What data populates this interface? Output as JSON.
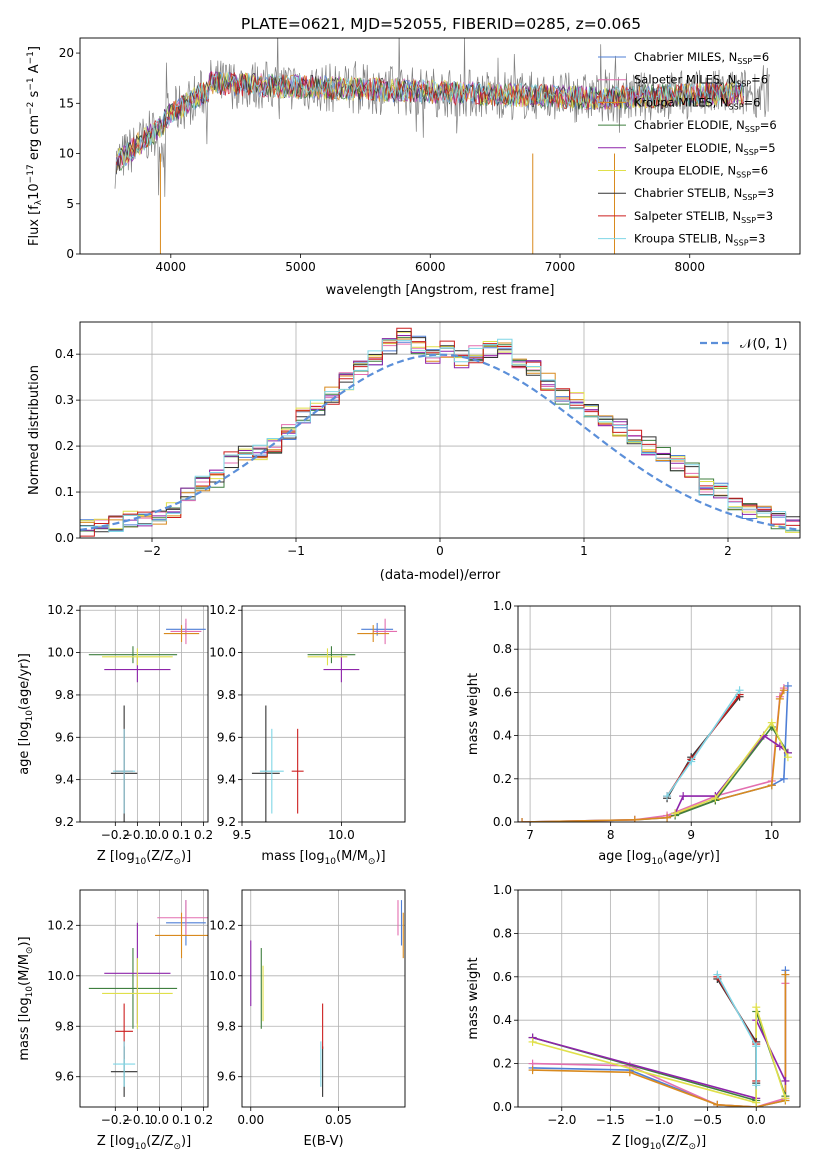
{
  "title": "PLATE=0621, MJD=52055, FIBERID=0285, z=0.065",
  "colors": {
    "Chabrier MILES": "#4f7fd6",
    "Salpeter MILES": "#e36fb0",
    "Kroupa MILES": "#d98a1e",
    "Chabrier ELODIE": "#3f7f3f",
    "Salpeter ELODIE": "#8e24aa",
    "Kroupa ELODIE": "#e0e04a",
    "Chabrier STELIB": "#333333",
    "Salpeter STELIB": "#cc1f1f",
    "Kroupa STELIB": "#7fd6e6",
    "data": "#808080",
    "normal": "#5b8fd9",
    "grid": "#b0b0b0"
  },
  "chart_data": [
    {
      "id": "spectrum",
      "type": "line",
      "title": "PLATE=0621, MJD=52055, FIBERID=0285, z=0.065",
      "xlabel": "wavelength [Angstrom, rest frame]",
      "ylabel_parts": [
        "Flux [f",
        "λ",
        "10",
        "−17",
        " erg cm",
        "−2",
        " s",
        "−1",
        " A",
        "−1",
        "]"
      ],
      "xlim": [
        3300,
        8850
      ],
      "ylim": [
        0,
        21.5
      ],
      "xticks": [
        4000,
        5000,
        6000,
        7000,
        8000
      ],
      "xtick_labels": [
        "4000",
        "5000",
        "6000",
        "7000",
        "8000"
      ],
      "yticks": [
        0,
        5,
        10,
        15,
        20
      ],
      "ytick_labels": [
        "0",
        "5",
        "10",
        "15",
        "20"
      ],
      "data_range": [
        3570,
        8620
      ],
      "legend": [
        {
          "base": "Chabrier MILES, N",
          "sub": "SSP",
          "tail": "=6"
        },
        {
          "base": "Salpeter MILES, N",
          "sub": "SSP",
          "tail": "=6"
        },
        {
          "base": "Kroupa MILES, N",
          "sub": "SSP",
          "tail": "=6"
        },
        {
          "base": "Chabrier ELODIE, N",
          "sub": "SSP",
          "tail": "=6"
        },
        {
          "base": "Salpeter ELODIE, N",
          "sub": "SSP",
          "tail": "=5"
        },
        {
          "base": "Kroupa ELODIE, N",
          "sub": "SSP",
          "tail": "=6"
        },
        {
          "base": "Chabrier STELIB, N",
          "sub": "SSP",
          "tail": "=3"
        },
        {
          "base": "Salpeter STELIB, N",
          "sub": "SSP",
          "tail": "=3"
        },
        {
          "base": "Kroupa STELIB, N",
          "sub": "SSP",
          "tail": "=3"
        }
      ]
    },
    {
      "id": "histogram",
      "type": "histogram",
      "xlabel": "(data-model)/error",
      "ylabel": "Normed distribution",
      "xlim": [
        -2.5,
        2.5
      ],
      "ylim": [
        0,
        0.47
      ],
      "xticks": [
        -2,
        -1,
        0,
        1,
        2
      ],
      "xtick_labels": [
        "−2",
        "−1",
        "0",
        "1",
        "2"
      ],
      "yticks": [
        0,
        0.1,
        0.2,
        0.3,
        0.4
      ],
      "ytick_labels": [
        "0.0",
        "0.1",
        "0.2",
        "0.3",
        "0.4"
      ],
      "bin_width": 0.1,
      "reference_counts": [
        0.02,
        0.03,
        0.03,
        0.04,
        0.04,
        0.05,
        0.06,
        0.09,
        0.12,
        0.13,
        0.17,
        0.18,
        0.19,
        0.2,
        0.23,
        0.27,
        0.28,
        0.31,
        0.34,
        0.37,
        0.39,
        0.42,
        0.44,
        0.42,
        0.4,
        0.41,
        0.39,
        0.4,
        0.41,
        0.42,
        0.38,
        0.37,
        0.34,
        0.31,
        0.3,
        0.28,
        0.25,
        0.24,
        0.22,
        0.2,
        0.18,
        0.16,
        0.15,
        0.11,
        0.1,
        0.08,
        0.06,
        0.05,
        0.04,
        0.03
      ],
      "legend_label": "𝒩(0, 1)"
    },
    {
      "id": "age-vs-z",
      "type": "errorbar",
      "xlabel_parts": [
        "Z [log",
        "10",
        "(Z/Z",
        "⊙",
        ")]"
      ],
      "ylabel_parts": [
        "age  [log",
        "10",
        "(age/yr)]"
      ],
      "xlim": [
        -0.36,
        0.22
      ],
      "ylim": [
        9.2,
        10.22
      ],
      "xticks": [
        -0.2,
        -0.1,
        0,
        0.1,
        0.2
      ],
      "xtick_labels": [
        "−0.2",
        "−0.1",
        "0.0",
        "0.1",
        "0.2"
      ],
      "yticks": [
        9.2,
        9.4,
        9.6,
        9.8,
        10.0,
        10.2
      ],
      "ytick_labels": [
        "9.2",
        "9.4",
        "9.6",
        "9.8",
        "10.0",
        "10.2"
      ],
      "points": [
        {
          "model": "Chabrier MILES",
          "x": 0.12,
          "xerr": 0.09,
          "y": 10.11,
          "yerr": 0.03
        },
        {
          "model": "Salpeter MILES",
          "x": 0.12,
          "xerr": 0.07,
          "y": 10.1,
          "yerr": 0.06
        },
        {
          "model": "Kroupa MILES",
          "x": 0.1,
          "xerr": 0.08,
          "y": 10.09,
          "yerr": 0.04
        },
        {
          "model": "Chabrier ELODIE",
          "x": -0.12,
          "xerr": 0.2,
          "y": 9.99,
          "yerr": 0.04
        },
        {
          "model": "Salpeter ELODIE",
          "x": -0.1,
          "xerr": 0.15,
          "y": 9.92,
          "yerr": 0.06
        },
        {
          "model": "Kroupa ELODIE",
          "x": -0.1,
          "xerr": 0.16,
          "y": 9.98,
          "yerr": 0.04
        },
        {
          "model": "Chabrier STELIB",
          "x": -0.16,
          "xerr": 0.06,
          "y": 9.43,
          "yerr": 0.32
        },
        {
          "model": "Salpeter STELIB",
          "x": -0.16,
          "xerr": 0.04,
          "y": 9.44,
          "yerr": 0.2
        },
        {
          "model": "Kroupa STELIB",
          "x": -0.16,
          "xerr": 0.05,
          "y": 9.44,
          "yerr": 0.2
        }
      ]
    },
    {
      "id": "age-vs-mass",
      "type": "errorbar",
      "xlabel_parts": [
        "mass [log",
        "10",
        "(M/M",
        "⊙",
        ")]"
      ],
      "ylabel_parts": [],
      "xlim": [
        9.5,
        10.32
      ],
      "ylim": [
        9.2,
        10.22
      ],
      "xticks": [
        9.5,
        10.0
      ],
      "xtick_labels": [
        "9.5",
        "10.0"
      ],
      "yticks": [
        9.2,
        9.4,
        9.6,
        9.8,
        10.0,
        10.2
      ],
      "ytick_labels": [
        "9.2",
        "9.4",
        "9.6",
        "9.8",
        "10.0",
        "10.2"
      ],
      "points": [
        {
          "model": "Chabrier MILES",
          "x": 10.18,
          "xerr": 0.08,
          "y": 10.11,
          "yerr": 0.03
        },
        {
          "model": "Salpeter MILES",
          "x": 10.22,
          "xerr": 0.06,
          "y": 10.1,
          "yerr": 0.06
        },
        {
          "model": "Kroupa MILES",
          "x": 10.16,
          "xerr": 0.08,
          "y": 10.09,
          "yerr": 0.04
        },
        {
          "model": "Chabrier ELODIE",
          "x": 9.95,
          "xerr": 0.12,
          "y": 9.99,
          "yerr": 0.04
        },
        {
          "model": "Salpeter ELODIE",
          "x": 10.0,
          "xerr": 0.09,
          "y": 9.92,
          "yerr": 0.06
        },
        {
          "model": "Kroupa ELODIE",
          "x": 9.93,
          "xerr": 0.1,
          "y": 9.98,
          "yerr": 0.04
        },
        {
          "model": "Chabrier STELIB",
          "x": 9.62,
          "xerr": 0.07,
          "y": 9.43,
          "yerr": 0.32
        },
        {
          "model": "Salpeter STELIB",
          "x": 9.78,
          "xerr": 0.03,
          "y": 9.44,
          "yerr": 0.2
        },
        {
          "model": "Kroupa STELIB",
          "x": 9.65,
          "xerr": 0.06,
          "y": 9.44,
          "yerr": 0.2
        }
      ]
    },
    {
      "id": "mass-weight-vs-age",
      "type": "line",
      "xlabel_parts": [
        "age  [log",
        "10",
        "(age/yr)]"
      ],
      "ylabel": "mass weight",
      "xlim": [
        6.85,
        10.35
      ],
      "ylim": [
        0,
        1.0
      ],
      "xticks": [
        7,
        8,
        9,
        10
      ],
      "xtick_labels": [
        "7",
        "8",
        "9",
        "10"
      ],
      "yticks": [
        0,
        0.2,
        0.4,
        0.6,
        0.8,
        1.0
      ],
      "ytick_labels": [
        "0.0",
        "0.2",
        "0.4",
        "0.6",
        "0.8",
        "1.0"
      ],
      "series": [
        {
          "model": "Chabrier MILES",
          "x": [
            6.9,
            8.3,
            8.7,
            9.3,
            10.0,
            10.15,
            10.2
          ],
          "y": [
            0.0,
            0.01,
            0.02,
            0.1,
            0.17,
            0.2,
            0.63
          ]
        },
        {
          "model": "Salpeter MILES",
          "x": [
            6.9,
            8.3,
            8.7,
            9.3,
            10.0,
            10.1,
            10.15
          ],
          "y": [
            0.0,
            0.01,
            0.03,
            0.12,
            0.19,
            0.58,
            0.62
          ]
        },
        {
          "model": "Kroupa MILES",
          "x": [
            6.9,
            8.3,
            8.7,
            9.3,
            10.0,
            10.1,
            10.15
          ],
          "y": [
            0.0,
            0.01,
            0.02,
            0.1,
            0.17,
            0.57,
            0.61
          ]
        },
        {
          "model": "Chabrier ELODIE",
          "x": [
            8.8,
            9.3,
            10.0,
            10.2
          ],
          "y": [
            0.03,
            0.1,
            0.44,
            0.32
          ]
        },
        {
          "model": "Salpeter ELODIE",
          "x": [
            8.8,
            8.9,
            9.3,
            9.9,
            10.1,
            10.2
          ],
          "y": [
            0.04,
            0.12,
            0.12,
            0.4,
            0.35,
            0.32
          ]
        },
        {
          "model": "Kroupa ELODIE",
          "x": [
            8.8,
            9.3,
            10.0,
            10.2
          ],
          "y": [
            0.04,
            0.11,
            0.46,
            0.3
          ]
        },
        {
          "model": "Chabrier STELIB",
          "x": [
            8.7,
            9.0,
            9.6
          ],
          "y": [
            0.11,
            0.3,
            0.58
          ]
        },
        {
          "model": "Salpeter STELIB",
          "x": [
            8.7,
            9.0,
            9.6
          ],
          "y": [
            0.12,
            0.29,
            0.59
          ]
        },
        {
          "model": "Kroupa STELIB",
          "x": [
            8.7,
            9.0,
            9.6
          ],
          "y": [
            0.12,
            0.28,
            0.61
          ]
        }
      ]
    },
    {
      "id": "mass-vs-z",
      "type": "errorbar",
      "xlabel_parts": [
        "Z [log",
        "10",
        "(Z/Z",
        "⊙",
        ")]"
      ],
      "ylabel_parts": [
        "mass [log",
        "10",
        "(M/M",
        "⊙",
        ")]"
      ],
      "xlim": [
        -0.36,
        0.22
      ],
      "ylim": [
        9.48,
        10.34
      ],
      "xticks": [
        -0.2,
        -0.1,
        0,
        0.1,
        0.2
      ],
      "xtick_labels": [
        "−0.2",
        "−0.1",
        "0.0",
        "0.1",
        "0.2"
      ],
      "yticks": [
        9.6,
        9.8,
        10.0,
        10.2
      ],
      "ytick_labels": [
        "9.6",
        "9.8",
        "10.0",
        "10.2"
      ],
      "points": [
        {
          "model": "Chabrier MILES",
          "x": 0.12,
          "xerr": 0.09,
          "y": 10.21,
          "yerr": 0.09
        },
        {
          "model": "Salpeter MILES",
          "x": 0.12,
          "xerr": 0.13,
          "y": 10.23,
          "yerr": 0.07
        },
        {
          "model": "Kroupa MILES",
          "x": 0.1,
          "xerr": 0.12,
          "y": 10.16,
          "yerr": 0.09
        },
        {
          "model": "Chabrier ELODIE",
          "x": -0.12,
          "xerr": 0.2,
          "y": 9.95,
          "yerr": 0.16
        },
        {
          "model": "Salpeter ELODIE",
          "x": -0.1,
          "xerr": 0.15,
          "y": 10.01,
          "yerr": 0.2
        },
        {
          "model": "Kroupa ELODIE",
          "x": -0.1,
          "xerr": 0.16,
          "y": 9.93,
          "yerr": 0.14
        },
        {
          "model": "Chabrier STELIB",
          "x": -0.16,
          "xerr": 0.06,
          "y": 9.62,
          "yerr": 0.1
        },
        {
          "model": "Salpeter STELIB",
          "x": -0.16,
          "xerr": 0.04,
          "y": 9.78,
          "yerr": 0.11
        },
        {
          "model": "Kroupa STELIB",
          "x": -0.16,
          "xerr": 0.05,
          "y": 9.65,
          "yerr": 0.09
        }
      ]
    },
    {
      "id": "mass-vs-ebv",
      "type": "errorbar",
      "xlabel": "E(B-V)",
      "xlim": [
        -0.005,
        0.088
      ],
      "ylim": [
        9.48,
        10.34
      ],
      "xticks": [
        0.0,
        0.05
      ],
      "xtick_labels": [
        "0.00",
        "0.05"
      ],
      "yticks": [
        9.6,
        9.8,
        10.0,
        10.2
      ],
      "ytick_labels": [
        "9.6",
        "9.8",
        "10.0",
        "10.2"
      ],
      "points": [
        {
          "model": "Chabrier MILES",
          "x": 0.086,
          "xerr": 0,
          "y": 10.21,
          "yerr": 0.09
        },
        {
          "model": "Salpeter MILES",
          "x": 0.084,
          "xerr": 0,
          "y": 10.23,
          "yerr": 0.07
        },
        {
          "model": "Kroupa MILES",
          "x": 0.087,
          "xerr": 0,
          "y": 10.16,
          "yerr": 0.09
        },
        {
          "model": "Chabrier ELODIE",
          "x": 0.006,
          "xerr": 0,
          "y": 9.95,
          "yerr": 0.16
        },
        {
          "model": "Salpeter ELODIE",
          "x": 0.0,
          "xerr": 0,
          "y": 10.01,
          "yerr": 0.13
        },
        {
          "model": "Kroupa ELODIE",
          "x": 0.007,
          "xerr": 0,
          "y": 9.93,
          "yerr": 0.11
        },
        {
          "model": "Chabrier STELIB",
          "x": 0.041,
          "xerr": 0,
          "y": 9.62,
          "yerr": 0.1
        },
        {
          "model": "Salpeter STELIB",
          "x": 0.041,
          "xerr": 0,
          "y": 9.8,
          "yerr": 0.09
        },
        {
          "model": "Kroupa STELIB",
          "x": 0.04,
          "xerr": 0,
          "y": 9.65,
          "yerr": 0.09
        }
      ]
    },
    {
      "id": "mass-weight-vs-z",
      "type": "line",
      "xlabel_parts": [
        "Z [log",
        "10",
        "(Z/Z",
        "⊙",
        ")]"
      ],
      "ylabel": "mass weight",
      "xlim": [
        -2.45,
        0.45
      ],
      "ylim": [
        0,
        1.0
      ],
      "xticks": [
        -2.0,
        -1.5,
        -1.0,
        -0.5,
        0.0
      ],
      "xtick_labels": [
        "−2.0",
        "−1.5",
        "−1.0",
        "−0.5",
        "0.0"
      ],
      "yticks": [
        0,
        0.2,
        0.4,
        0.6,
        0.8,
        1.0
      ],
      "ytick_labels": [
        "0.0",
        "0.2",
        "0.4",
        "0.6",
        "0.8",
        "1.0"
      ],
      "series": [
        {
          "model": "Chabrier MILES",
          "x": [
            -2.3,
            -1.3,
            -0.4,
            0.0,
            0.3,
            0.3
          ],
          "y": [
            0.18,
            0.17,
            0.01,
            0.0,
            0.03,
            0.63
          ]
        },
        {
          "model": "Salpeter MILES",
          "x": [
            -2.3,
            -1.3,
            -0.4,
            0.0,
            0.3,
            0.3
          ],
          "y": [
            0.2,
            0.19,
            0.01,
            0.0,
            0.04,
            0.57
          ]
        },
        {
          "model": "Kroupa MILES",
          "x": [
            -2.3,
            -1.3,
            -0.4,
            0.0,
            0.3,
            0.3
          ],
          "y": [
            0.17,
            0.16,
            0.01,
            0.0,
            0.03,
            0.61
          ]
        },
        {
          "model": "Chabrier ELODIE",
          "x": [
            -2.3,
            0.0,
            0.0,
            0.3
          ],
          "y": [
            0.32,
            0.03,
            0.44,
            0.05
          ]
        },
        {
          "model": "Salpeter ELODIE",
          "x": [
            -2.3,
            0.0,
            0.0,
            0.3
          ],
          "y": [
            0.32,
            0.04,
            0.4,
            0.12
          ]
        },
        {
          "model": "Kroupa ELODIE",
          "x": [
            -2.3,
            0.0,
            0.0,
            0.3
          ],
          "y": [
            0.3,
            0.02,
            0.46,
            0.04
          ]
        },
        {
          "model": "Chabrier STELIB",
          "x": [
            -0.4,
            0.0,
            0.0
          ],
          "y": [
            0.59,
            0.3,
            0.11
          ]
        },
        {
          "model": "Salpeter STELIB",
          "x": [
            -0.4,
            0.0,
            0.0
          ],
          "y": [
            0.6,
            0.29,
            0.12
          ]
        },
        {
          "model": "Kroupa STELIB",
          "x": [
            -0.4,
            0.0,
            0.0
          ],
          "y": [
            0.61,
            0.28,
            0.1
          ]
        }
      ]
    }
  ]
}
